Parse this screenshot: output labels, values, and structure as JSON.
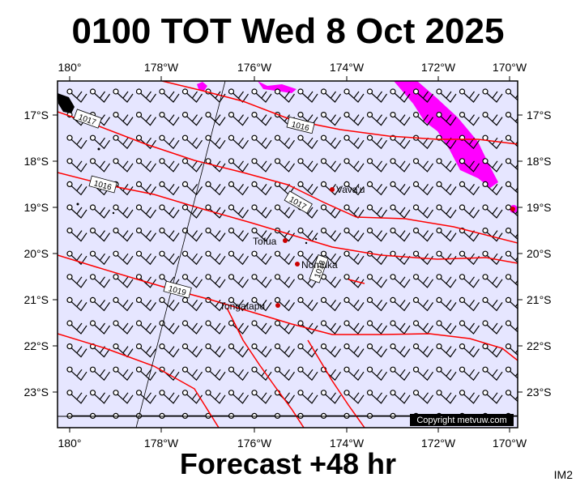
{
  "title": "0100 TOT Wed 8 Oct 2025",
  "footer": "Forecast +48 hr",
  "model": "IM2",
  "copyright": "Copyright metvuw.com",
  "colors": {
    "background": "#e6e6ff",
    "isobar": "#ff0000",
    "rain": "#ff00ff",
    "wind_barb": "#000000",
    "town": "#cc0000"
  },
  "lon_labels_top": [
    "180°",
    "178°W",
    "176°W",
    "174°W",
    "172°W",
    "170°W"
  ],
  "lon_labels_bottom": [
    "180°",
    "178°W",
    "176°W",
    "174°W",
    "172°W",
    "170°W"
  ],
  "lat_labels_left": [
    "17°S",
    "18°S",
    "19°S",
    "20°S",
    "21°S",
    "22°S",
    "23°S"
  ],
  "lat_labels_right": [
    "17°S",
    "18°S",
    "19°S",
    "20°S",
    "21°S",
    "22°S",
    "23°S"
  ],
  "isobar_labels": [
    "1017",
    "1016",
    "1016",
    "1017",
    "1018",
    "1019"
  ],
  "places": [
    "Vava'u",
    "Tofua",
    "Nomuka",
    "Tongatapu"
  ]
}
